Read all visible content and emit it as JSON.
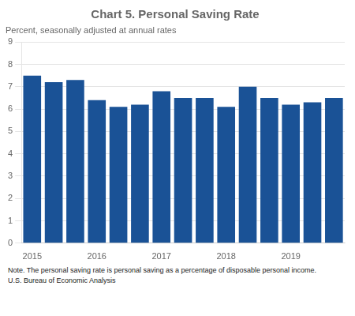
{
  "chart_data": {
    "type": "bar",
    "title": "Chart 5. Personal Saving Rate",
    "subtitle": "Percent, seasonally adjusted at annual rates",
    "annotations": [
      "Note. The personal saving rate is personal saving as a percentage of disposable personal income.",
      "U.S. Bureau of Economic Analysis"
    ],
    "categories": [
      "2015",
      null,
      null,
      "2016",
      null,
      null,
      "2017",
      null,
      null,
      "2018",
      null,
      null,
      "2019",
      null,
      null
    ],
    "values": [
      7.5,
      7.2,
      7.3,
      6.4,
      6.1,
      6.2,
      6.8,
      6.5,
      6.5,
      6.1,
      7.0,
      6.5,
      6.2,
      6.3,
      6.5
    ],
    "color": "#1a5296",
    "ylim": [
      0,
      9
    ],
    "yticks": [
      0,
      1,
      2,
      3,
      4,
      5,
      6,
      7,
      8,
      9
    ],
    "grid": true
  }
}
